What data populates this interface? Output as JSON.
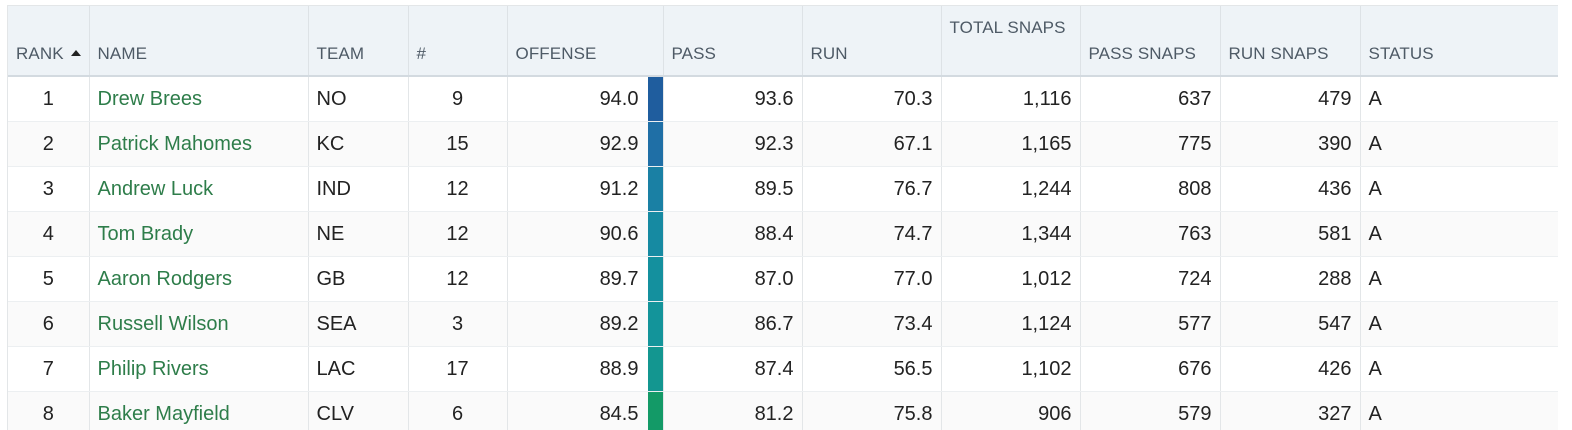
{
  "grid": {
    "columns": {
      "rank": "RANK",
      "name": "NAME",
      "team": "TEAM",
      "number": "#",
      "offense": "OFFENSE",
      "pass": "PASS",
      "run": "RUN",
      "total_snaps": "TOTAL SNAPS",
      "pass_snaps": "PASS SNAPS",
      "run_snaps": "RUN SNAPS",
      "status": "STATUS"
    },
    "sorted_by": "rank",
    "sort_direction": "ascending",
    "rows": [
      {
        "rank": "1",
        "name": "Drew Brees",
        "team": "NO",
        "number": "9",
        "offense": "94.0",
        "pass": "93.6",
        "run": "70.3",
        "total_snaps": "1,116",
        "pass_snaps": "637",
        "run_snaps": "479",
        "status": "A",
        "grade_color": "#1f5d9e"
      },
      {
        "rank": "2",
        "name": "Patrick Mahomes",
        "team": "KC",
        "number": "15",
        "offense": "92.9",
        "pass": "92.3",
        "run": "67.1",
        "total_snaps": "1,165",
        "pass_snaps": "775",
        "run_snaps": "390",
        "status": "A",
        "grade_color": "#1f6fa6"
      },
      {
        "rank": "3",
        "name": "Andrew Luck",
        "team": "IND",
        "number": "12",
        "offense": "91.2",
        "pass": "89.5",
        "run": "76.7",
        "total_snaps": "1,244",
        "pass_snaps": "808",
        "run_snaps": "436",
        "status": "A",
        "grade_color": "#1a80a4"
      },
      {
        "rank": "4",
        "name": "Tom Brady",
        "team": "NE",
        "number": "12",
        "offense": "90.6",
        "pass": "88.4",
        "run": "74.7",
        "total_snaps": "1,344",
        "pass_snaps": "763",
        "run_snaps": "581",
        "status": "A",
        "grade_color": "#168aa2"
      },
      {
        "rank": "5",
        "name": "Aaron Rodgers",
        "team": "GB",
        "number": "12",
        "offense": "89.7",
        "pass": "87.0",
        "run": "77.0",
        "total_snaps": "1,012",
        "pass_snaps": "724",
        "run_snaps": "288",
        "status": "A",
        "grade_color": "#14909e"
      },
      {
        "rank": "6",
        "name": "Russell Wilson",
        "team": "SEA",
        "number": "3",
        "offense": "89.2",
        "pass": "86.7",
        "run": "73.4",
        "total_snaps": "1,124",
        "pass_snaps": "577",
        "run_snaps": "547",
        "status": "A",
        "grade_color": "#13949a"
      },
      {
        "rank": "7",
        "name": "Philip Rivers",
        "team": "LAC",
        "number": "17",
        "offense": "88.9",
        "pass": "87.4",
        "run": "56.5",
        "total_snaps": "1,102",
        "pass_snaps": "676",
        "run_snaps": "426",
        "status": "A",
        "grade_color": "#139690"
      },
      {
        "rank": "8",
        "name": "Baker Mayfield",
        "team": "CLV",
        "number": "6",
        "offense": "84.5",
        "pass": "81.2",
        "run": "75.8",
        "total_snaps": "906",
        "pass_snaps": "579",
        "run_snaps": "327",
        "status": "A",
        "grade_color": "#139a67"
      }
    ]
  }
}
